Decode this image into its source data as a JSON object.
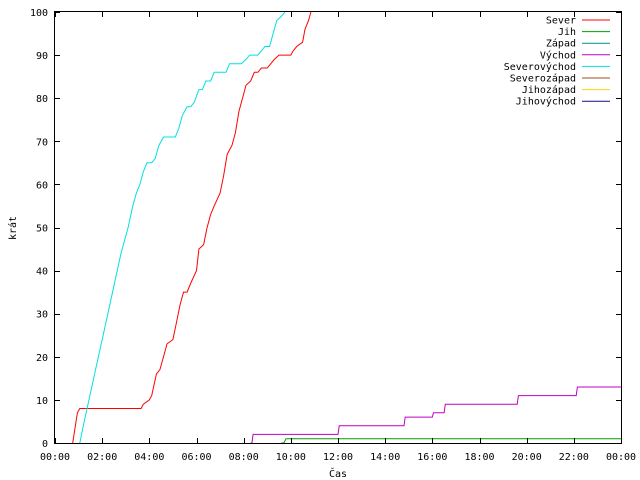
{
  "chart_data": {
    "type": "line",
    "title": "",
    "xlabel": "Čas",
    "ylabel": "krát",
    "xlim": [
      0,
      24
    ],
    "ylim": [
      0,
      100
    ],
    "x_ticks": [
      0,
      2,
      4,
      6,
      8,
      10,
      12,
      14,
      16,
      18,
      20,
      22,
      24
    ],
    "x_tick_labels": [
      "00:00",
      "02:00",
      "04:00",
      "06:00",
      "08:00",
      "10:00",
      "12:00",
      "14:00",
      "16:00",
      "18:00",
      "20:00",
      "22:00",
      "00:00"
    ],
    "y_ticks": [
      0,
      10,
      20,
      30,
      40,
      50,
      60,
      70,
      80,
      90,
      100
    ],
    "y_tick_labels": [
      "0",
      "10",
      "20",
      "30",
      "40",
      "50",
      "60",
      "70",
      "80",
      "90",
      "100"
    ],
    "grid": false,
    "legend": "top-right",
    "series": [
      {
        "name": "Sever",
        "color": "#ff0000",
        "x": [
          0.75,
          0.95,
          1.05,
          3.65,
          3.75,
          4.0,
          4.1,
          4.3,
          4.45,
          4.6,
          4.75,
          5.0,
          5.15,
          5.3,
          5.45,
          5.6,
          5.75,
          6.0,
          6.1,
          6.3,
          6.45,
          6.6,
          6.75,
          7.0,
          7.15,
          7.3,
          7.5,
          7.65,
          7.8,
          8.0,
          8.1,
          8.3,
          8.45,
          8.6,
          8.75,
          9.0,
          9.15,
          9.3,
          9.5,
          9.75,
          10.0,
          10.1,
          10.25,
          10.5,
          10.6,
          10.75,
          10.85
        ],
        "y": [
          0,
          7,
          8,
          8,
          9,
          10,
          11,
          16,
          17,
          20,
          23,
          24,
          28,
          32,
          35,
          35,
          37,
          40,
          45,
          46,
          50,
          53,
          55,
          58,
          62,
          67,
          69,
          72,
          77,
          81,
          83,
          84,
          86,
          86,
          87,
          87,
          88,
          89,
          90,
          90,
          90,
          91,
          92,
          93,
          96,
          98,
          100
        ]
      },
      {
        "name": "Jih",
        "color": "#00a000",
        "x": [
          9.6,
          9.7,
          9.8,
          24.0
        ],
        "y": [
          0,
          0,
          1,
          1
        ]
      },
      {
        "name": "Západ",
        "color": "#008b8b",
        "x": [],
        "y": []
      },
      {
        "name": "Východ",
        "color": "#c000c0",
        "x": [
          8.3,
          8.35,
          8.4,
          12.0,
          12.05,
          14.8,
          14.85,
          16.0,
          16.05,
          16.5,
          16.55,
          19.6,
          19.65,
          22.1,
          22.15,
          24.0
        ],
        "y": [
          0,
          0,
          2,
          2,
          4,
          4,
          6,
          6,
          7,
          7,
          9,
          9,
          11,
          11,
          13,
          13
        ]
      },
      {
        "name": "Severovýchod",
        "color": "#00e0e0",
        "x": [
          1.05,
          1.2,
          1.4,
          1.6,
          1.8,
          2.0,
          2.2,
          2.4,
          2.6,
          2.8,
          2.95,
          3.1,
          3.3,
          3.45,
          3.6,
          3.75,
          3.9,
          4.1,
          4.25,
          4.4,
          4.6,
          4.75,
          4.9,
          5.1,
          5.25,
          5.4,
          5.6,
          5.75,
          5.9,
          6.1,
          6.25,
          6.4,
          6.6,
          6.75,
          6.9,
          7.1,
          7.25,
          7.4,
          7.6,
          7.75,
          7.9,
          8.1,
          8.25,
          8.4,
          8.6,
          8.75,
          8.9,
          9.1,
          9.25,
          9.4,
          9.6,
          9.75
        ],
        "y": [
          0,
          4,
          9,
          14,
          19,
          24,
          29,
          34,
          39,
          44,
          47,
          50,
          55,
          58,
          60,
          63,
          65,
          65,
          66,
          69,
          71,
          71,
          71,
          71,
          73,
          76,
          78,
          78,
          79,
          82,
          82,
          84,
          84,
          86,
          86,
          86,
          86,
          88,
          88,
          88,
          88,
          89,
          90,
          90,
          90,
          91,
          92,
          92,
          95,
          98,
          99,
          100
        ]
      },
      {
        "name": "Severozápad",
        "color": "#a05020",
        "x": [],
        "y": []
      },
      {
        "name": "Jihozápad",
        "color": "#ffd700",
        "x": [],
        "y": []
      },
      {
        "name": "Jihovýchod",
        "color": "#101080",
        "x": [],
        "y": []
      }
    ]
  }
}
